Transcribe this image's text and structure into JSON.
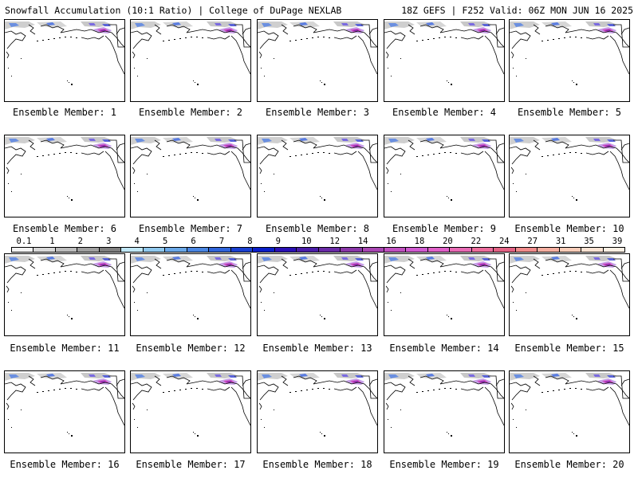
{
  "header": {
    "left": "Snowfall Accumulation (10:1 Ratio) | College of DuPage NEXLAB",
    "right": "18Z GEFS | F252 Valid: 06Z MON JUN 16 2025"
  },
  "panels": [
    {
      "label": "Ensemble Member: 1"
    },
    {
      "label": "Ensemble Member: 2"
    },
    {
      "label": "Ensemble Member: 3"
    },
    {
      "label": "Ensemble Member: 4"
    },
    {
      "label": "Ensemble Member: 5"
    },
    {
      "label": "Ensemble Member: 6"
    },
    {
      "label": "Ensemble Member: 7"
    },
    {
      "label": "Ensemble Member: 8"
    },
    {
      "label": "Ensemble Member: 9"
    },
    {
      "label": "Ensemble Member: 10"
    },
    {
      "label": "Ensemble Member: 11"
    },
    {
      "label": "Ensemble Member: 12"
    },
    {
      "label": "Ensemble Member: 13"
    },
    {
      "label": "Ensemble Member: 14"
    },
    {
      "label": "Ensemble Member: 15"
    },
    {
      "label": "Ensemble Member: 16"
    },
    {
      "label": "Ensemble Member: 17"
    },
    {
      "label": "Ensemble Member: 18"
    },
    {
      "label": "Ensemble Member: 19"
    },
    {
      "label": "Ensemble Member: 20"
    }
  ],
  "colorbar": {
    "ticks": [
      "0.1",
      "1",
      "2",
      "3",
      "4",
      "5",
      "6",
      "7",
      "8",
      "9",
      "10",
      "12",
      "14",
      "16",
      "18",
      "20",
      "22",
      "24",
      "27",
      "31",
      "35",
      "39"
    ],
    "colors": [
      "#f2f2f2",
      "#d8d8d8",
      "#bdbdbd",
      "#a0a0a0",
      "#808080",
      "#bfe6f5",
      "#8fc8ee",
      "#6aa8e8",
      "#4a86e2",
      "#2f64da",
      "#1a40d0",
      "#0a1ec8",
      "#2a0fb4",
      "#4a1ca8",
      "#6a2aa6",
      "#8a36a8",
      "#a846b2",
      "#c050c0",
      "#d05ad0",
      "#e060c8",
      "#e86ab4",
      "#ec6c9c",
      "#e26284",
      "#f08c8c",
      "#f4aea0",
      "#f8ccb8",
      "#fbe2d2",
      "#fdf0e4"
    ]
  }
}
